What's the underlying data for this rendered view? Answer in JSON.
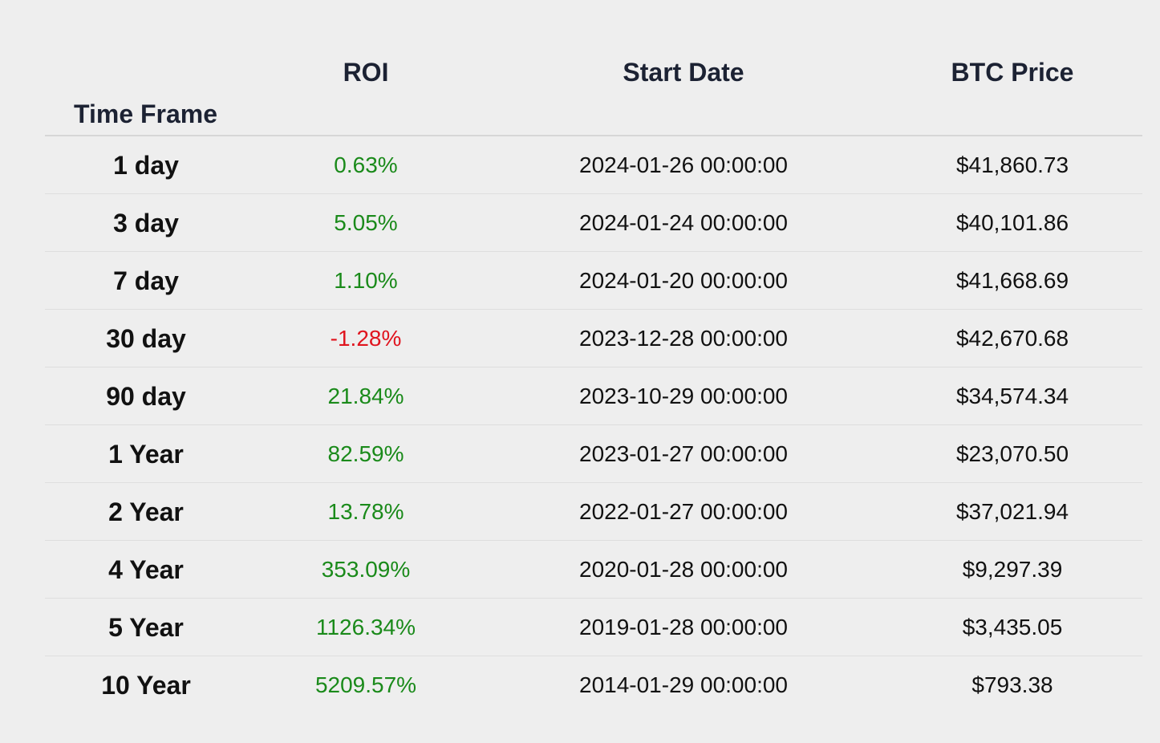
{
  "table": {
    "headers": {
      "time_frame": "Time Frame",
      "roi": "ROI",
      "start_date": "Start Date",
      "btc_price": "BTC Price"
    },
    "colors": {
      "positive": "#1a8a1a",
      "negative": "#e0141e"
    },
    "rows": [
      {
        "time_frame": "1 day",
        "roi": "0.63%",
        "start_date": "2024-01-26 00:00:00",
        "btc_price": "$41,860.73"
      },
      {
        "time_frame": "3 day",
        "roi": "5.05%",
        "start_date": "2024-01-24 00:00:00",
        "btc_price": "$40,101.86"
      },
      {
        "time_frame": "7 day",
        "roi": "1.10%",
        "start_date": "2024-01-20 00:00:00",
        "btc_price": "$41,668.69"
      },
      {
        "time_frame": "30 day",
        "roi": "-1.28%",
        "start_date": "2023-12-28 00:00:00",
        "btc_price": "$42,670.68"
      },
      {
        "time_frame": "90 day",
        "roi": "21.84%",
        "start_date": "2023-10-29 00:00:00",
        "btc_price": "$34,574.34"
      },
      {
        "time_frame": "1 Year",
        "roi": "82.59%",
        "start_date": "2023-01-27 00:00:00",
        "btc_price": "$23,070.50"
      },
      {
        "time_frame": "2 Year",
        "roi": "13.78%",
        "start_date": "2022-01-27 00:00:00",
        "btc_price": "$37,021.94"
      },
      {
        "time_frame": "4 Year",
        "roi": "353.09%",
        "start_date": "2020-01-28 00:00:00",
        "btc_price": "$9,297.39"
      },
      {
        "time_frame": "5 Year",
        "roi": "1126.34%",
        "start_date": "2019-01-28 00:00:00",
        "btc_price": "$3,435.05"
      },
      {
        "time_frame": "10 Year",
        "roi": "5209.57%",
        "start_date": "2014-01-29 00:00:00",
        "btc_price": "$793.38"
      }
    ]
  }
}
